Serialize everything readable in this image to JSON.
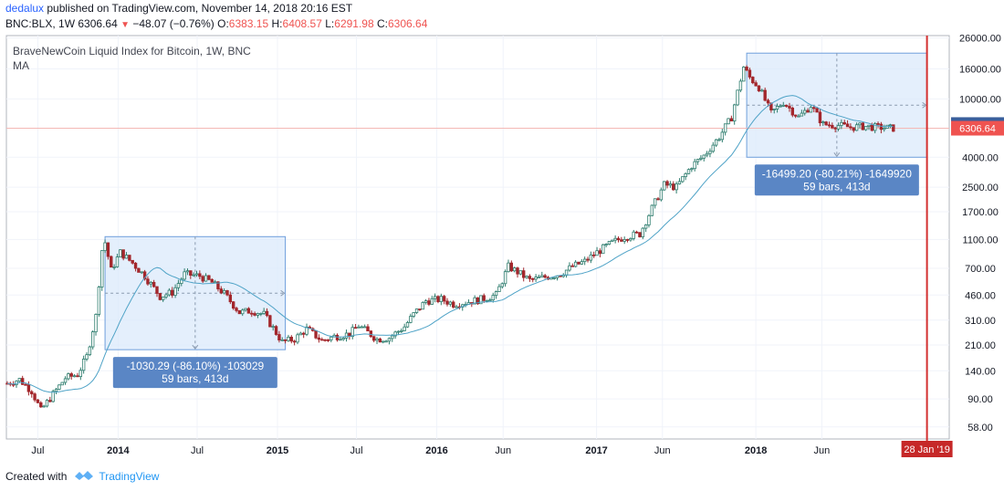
{
  "header": {
    "author": "dedalux",
    "published": " published on TradingView.com, November 14, 2018 20:16 EST"
  },
  "ohlc": {
    "symbol": "BNC:BLX, 1W",
    "last": "6306.64",
    "change": "−48.07 (−0.76%)",
    "open_label": "O:",
    "open": "6383.15",
    "high_label": "H:",
    "high": "6408.57",
    "low_label": "L:",
    "low": "6291.98",
    "close_label": "C:",
    "close": "6306.64"
  },
  "legend": {
    "title": "BraveNewCoin Liquid Index for Bitcoin, 1W, BNC",
    "ma": "MA"
  },
  "footer": {
    "created_with": "Created with",
    "brand": "TradingView"
  },
  "colors": {
    "up": "#26a69a",
    "down": "#ef5350",
    "candle_up": "#2e7d6e",
    "candle_down": "#a3272c",
    "ma": "#4fa3c7",
    "measure_fill": "#dbeafb",
    "measure_stroke": "#6f9fdc",
    "measure_label_bg": "#5a86c5",
    "current_price_line": "#f4b8b5",
    "marker_line": "#d32f2f",
    "brand": "#2196f3"
  },
  "chart_data": {
    "type": "candlestick",
    "title": "BraveNewCoin Liquid Index for Bitcoin, 1W, BNC",
    "y_scale": "log",
    "y_ticks": [
      "26000.00",
      "16000.00",
      "10000.00",
      "6684.04",
      "6306.64",
      "4000.00",
      "2500.00",
      "1700.00",
      "1100.00",
      "700.00",
      "460.00",
      "310.00",
      "210.00",
      "140.00",
      "90.00",
      "58.00"
    ],
    "y_tick_values": [
      26000,
      16000,
      10000,
      4000,
      2500,
      1700,
      1100,
      700,
      460,
      310,
      210,
      140,
      90,
      58
    ],
    "price_labels": [
      {
        "text": "6684.04",
        "value": 6684.04,
        "color": "#3a5f9c"
      },
      {
        "text": "6306.64",
        "value": 6306.64,
        "color": "#ef5350"
      }
    ],
    "x_ticks": [
      {
        "label": "Jul",
        "date": "2013-07-01",
        "bold": false
      },
      {
        "label": "2014",
        "date": "2014-01-01",
        "bold": true
      },
      {
        "label": "Jul",
        "date": "2014-07-01",
        "bold": false
      },
      {
        "label": "2015",
        "date": "2015-01-01",
        "bold": true
      },
      {
        "label": "Jul",
        "date": "2015-07-01",
        "bold": false
      },
      {
        "label": "2016",
        "date": "2016-01-01",
        "bold": true
      },
      {
        "label": "Jun",
        "date": "2016-06-01",
        "bold": false
      },
      {
        "label": "2017",
        "date": "2017-01-01",
        "bold": true
      },
      {
        "label": "Jun",
        "date": "2017-06-01",
        "bold": false
      },
      {
        "label": "2018",
        "date": "2018-01-01",
        "bold": true
      },
      {
        "label": "Jun",
        "date": "2018-06-01",
        "bold": false
      }
    ],
    "x_range": [
      "2013-04-20",
      "2019-03-20"
    ],
    "y_range": [
      48,
      27000
    ],
    "vertical_marker": {
      "label": "28 Jan '19",
      "date": "2019-01-28"
    },
    "closes": [
      {
        "date": "2013-04-22",
        "close": 115
      },
      {
        "date": "2013-05-20",
        "close": 122
      },
      {
        "date": "2013-06-17",
        "close": 102
      },
      {
        "date": "2013-07-08",
        "close": 75
      },
      {
        "date": "2013-08-05",
        "close": 97
      },
      {
        "date": "2013-09-02",
        "close": 125
      },
      {
        "date": "2013-09-30",
        "close": 132
      },
      {
        "date": "2013-10-21",
        "close": 175
      },
      {
        "date": "2013-11-11",
        "close": 330
      },
      {
        "date": "2013-11-25",
        "close": 930
      },
      {
        "date": "2013-12-02",
        "close": 1050
      },
      {
        "date": "2013-12-16",
        "close": 680
      },
      {
        "date": "2014-01-06",
        "close": 900
      },
      {
        "date": "2014-02-03",
        "close": 760
      },
      {
        "date": "2014-03-03",
        "close": 620
      },
      {
        "date": "2014-04-07",
        "close": 450
      },
      {
        "date": "2014-05-05",
        "close": 480
      },
      {
        "date": "2014-06-02",
        "close": 640
      },
      {
        "date": "2014-07-07",
        "close": 620
      },
      {
        "date": "2014-08-04",
        "close": 560
      },
      {
        "date": "2014-09-01",
        "close": 470
      },
      {
        "date": "2014-10-06",
        "close": 350
      },
      {
        "date": "2014-11-03",
        "close": 360
      },
      {
        "date": "2014-12-01",
        "close": 340
      },
      {
        "date": "2015-01-12",
        "close": 220
      },
      {
        "date": "2015-02-09",
        "close": 230
      },
      {
        "date": "2015-03-09",
        "close": 270
      },
      {
        "date": "2015-04-13",
        "close": 225
      },
      {
        "date": "2015-05-11",
        "close": 240
      },
      {
        "date": "2015-06-15",
        "close": 250
      },
      {
        "date": "2015-07-06",
        "close": 285
      },
      {
        "date": "2015-08-17",
        "close": 230
      },
      {
        "date": "2015-09-14",
        "close": 235
      },
      {
        "date": "2015-10-19",
        "close": 280
      },
      {
        "date": "2015-11-09",
        "close": 340
      },
      {
        "date": "2015-12-07",
        "close": 420
      },
      {
        "date": "2016-01-11",
        "close": 430
      },
      {
        "date": "2016-02-08",
        "close": 400
      },
      {
        "date": "2016-03-07",
        "close": 410
      },
      {
        "date": "2016-04-11",
        "close": 430
      },
      {
        "date": "2016-05-16",
        "close": 460
      },
      {
        "date": "2016-06-13",
        "close": 720
      },
      {
        "date": "2016-07-04",
        "close": 660
      },
      {
        "date": "2016-08-01",
        "close": 580
      },
      {
        "date": "2016-09-05",
        "close": 610
      },
      {
        "date": "2016-10-10",
        "close": 640
      },
      {
        "date": "2016-11-07",
        "close": 720
      },
      {
        "date": "2016-12-05",
        "close": 780
      },
      {
        "date": "2017-01-02",
        "close": 900
      },
      {
        "date": "2017-02-06",
        "close": 1050
      },
      {
        "date": "2017-03-06",
        "close": 1150
      },
      {
        "date": "2017-04-10",
        "close": 1200
      },
      {
        "date": "2017-05-08",
        "close": 1800
      },
      {
        "date": "2017-06-05",
        "close": 2600
      },
      {
        "date": "2017-07-03",
        "close": 2500
      },
      {
        "date": "2017-08-07",
        "close": 3500
      },
      {
        "date": "2017-09-04",
        "close": 4100
      },
      {
        "date": "2017-10-09",
        "close": 5500
      },
      {
        "date": "2017-11-06",
        "close": 7500
      },
      {
        "date": "2017-12-04",
        "close": 16500
      },
      {
        "date": "2017-12-18",
        "close": 14000
      },
      {
        "date": "2018-01-08",
        "close": 12000
      },
      {
        "date": "2018-02-05",
        "close": 8000
      },
      {
        "date": "2018-03-05",
        "close": 9500
      },
      {
        "date": "2018-04-09",
        "close": 7500
      },
      {
        "date": "2018-05-07",
        "close": 9000
      },
      {
        "date": "2018-06-04",
        "close": 6700
      },
      {
        "date": "2018-07-09",
        "close": 6600
      },
      {
        "date": "2018-08-06",
        "close": 6400
      },
      {
        "date": "2018-09-03",
        "close": 6500
      },
      {
        "date": "2018-10-08",
        "close": 6400
      },
      {
        "date": "2018-11-12",
        "close": 6306.64
      }
    ],
    "measurements": [
      {
        "start": "2013-12-02",
        "end": "2015-01-19",
        "top": 1150,
        "bottom": 195,
        "line1": "-1030.29 (-86.10%) -103029",
        "line2": "59 bars, 413d"
      },
      {
        "start": "2017-12-11",
        "end": "2019-01-28",
        "top": 20500,
        "bottom": 4000,
        "line1": "-16499.20 (-80.21%) -1649920",
        "line2": "59 bars, 413d"
      }
    ]
  }
}
